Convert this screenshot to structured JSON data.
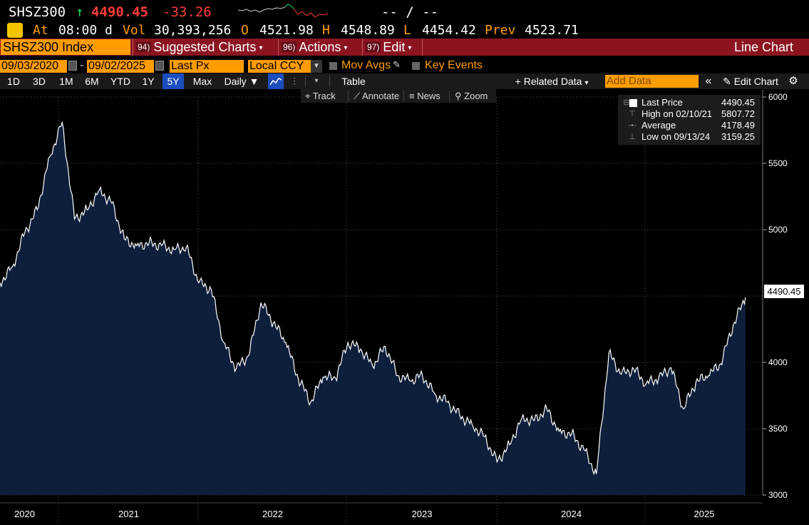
{
  "header": {
    "ticker": "SHSZ300",
    "arrow": "↑",
    "last_price": "4490.45",
    "net_change": "-33.26",
    "sparkline_dashes": "--  /  --",
    "time_label": "At",
    "time_value": "08:00 d",
    "vol_label": "Vol",
    "vol_value": "30,393,256",
    "open_label": "O",
    "open_value": "4521.98",
    "high_label": "H",
    "high_value": "4548.89",
    "low_label": "L",
    "low_value": "4454.42",
    "prev_label": "Prev",
    "prev_value": "4523.71"
  },
  "menubar": {
    "security": "SHSZ300 Index",
    "items": [
      {
        "num": "94)",
        "label": "Suggested Charts"
      },
      {
        "num": "96)",
        "label": "Actions"
      },
      {
        "num": "97)",
        "label": "Edit"
      }
    ],
    "chart_type": "Line Chart"
  },
  "controls": {
    "start_date": "09/03/2020",
    "end_date": "09/02/2025",
    "field": "Last Px",
    "currency": "Local CCY",
    "mov_avgs": "Mov Avgs",
    "key_events": "Key Events"
  },
  "range": {
    "buttons": [
      "1D",
      "3D",
      "1M",
      "6M",
      "YTD",
      "1Y",
      "5Y",
      "Max"
    ],
    "active": "5Y",
    "frequency": "Daily ▼",
    "table": "Table",
    "related_data": "+ Related Data",
    "add_data_placeholder": "Add Data",
    "edit_chart": "Edit Chart"
  },
  "toolbar": {
    "track": "Track",
    "annotate": "Annotate",
    "news": "News",
    "zoom": "Zoom"
  },
  "legend": {
    "last_price_label": "Last Price",
    "last_price_value": "4490.45",
    "high_label": "High on 02/10/21",
    "high_value": "5807.72",
    "average_label": "Average",
    "average_value": "4178.49",
    "low_label": "Low on 09/13/24",
    "low_value": "3159.25"
  },
  "price_tag": "4490.45",
  "colors": {
    "background": "#000000",
    "area_fill": "#0e1f3c",
    "line": "#ffffff",
    "accent_amber": "#ff9d00",
    "menubar": "#8b1420",
    "negative": "#ff3b3b",
    "positive": "#1ed760"
  },
  "chart_data": {
    "type": "area",
    "title": "SHSZ300 Index",
    "series": [
      {
        "name": "Last Price",
        "x": [
          "2020-09",
          "2020-10",
          "2020-11",
          "2020-12",
          "2021-01",
          "2021-02",
          "2021-03",
          "2021-04",
          "2021-05",
          "2021-06",
          "2021-07",
          "2021-08",
          "2021-09",
          "2021-10",
          "2021-11",
          "2021-12",
          "2022-01",
          "2022-02",
          "2022-03",
          "2022-04",
          "2022-05",
          "2022-06",
          "2022-07",
          "2022-08",
          "2022-09",
          "2022-10",
          "2022-11",
          "2022-12",
          "2023-01",
          "2023-02",
          "2023-03",
          "2023-04",
          "2023-05",
          "2023-06",
          "2023-07",
          "2023-08",
          "2023-09",
          "2023-10",
          "2023-11",
          "2023-12",
          "2024-01",
          "2024-02",
          "2024-03",
          "2024-04",
          "2024-05",
          "2024-06",
          "2024-07",
          "2024-08",
          "2024-09",
          "2024-10",
          "2024-11",
          "2024-12",
          "2025-01",
          "2025-02",
          "2025-03",
          "2025-04",
          "2025-05",
          "2025-06",
          "2025-07",
          "2025-08",
          "2025-09"
        ],
        "values": [
          4600,
          4720,
          4980,
          5150,
          5550,
          5808,
          5080,
          5150,
          5300,
          5200,
          4930,
          4880,
          4900,
          4880,
          4850,
          4870,
          4600,
          4550,
          4150,
          3950,
          4050,
          4450,
          4300,
          4150,
          3880,
          3700,
          3890,
          3880,
          4150,
          4100,
          3970,
          4120,
          3900,
          3860,
          3900,
          3760,
          3700,
          3600,
          3530,
          3440,
          3250,
          3380,
          3580,
          3560,
          3650,
          3480,
          3460,
          3340,
          3159,
          4070,
          3910,
          3950,
          3840,
          3880,
          3960,
          3650,
          3850,
          3900,
          3990,
          4280,
          4490
        ]
      }
    ],
    "xlabel": "",
    "ylabel": "",
    "x_tick_labels": [
      "2020",
      "2021",
      "2022",
      "2023",
      "2024",
      "2025"
    ],
    "y_ticks": [
      3000,
      3500,
      4000,
      4500,
      5000,
      5500,
      6000
    ],
    "y_tick_labels": [
      "3000",
      "3500",
      "4000",
      "",
      "5000",
      "5500",
      "6000"
    ],
    "ylim": [
      3000,
      6000
    ],
    "grid": true,
    "legend_position": "top-right"
  }
}
